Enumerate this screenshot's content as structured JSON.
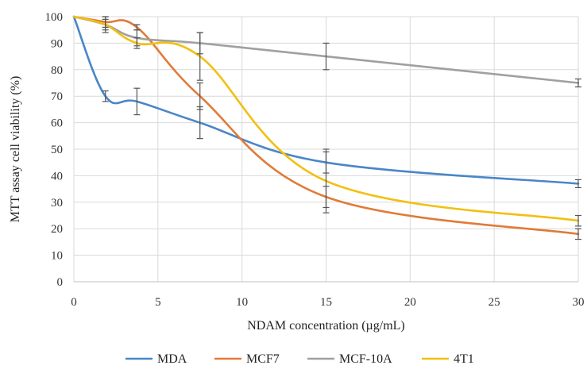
{
  "chart_data": {
    "type": "line",
    "title": "",
    "xlabel": "NDAM concentration (µg/mL)",
    "ylabel": "MTT assay cell viability (%)",
    "xlim": [
      0,
      30
    ],
    "ylim": [
      0,
      100
    ],
    "x_ticks": [
      0,
      5,
      10,
      15,
      20,
      25,
      30
    ],
    "y_ticks": [
      0,
      10,
      20,
      30,
      40,
      50,
      60,
      70,
      80,
      90,
      100
    ],
    "grid": true,
    "legend_position": "bottom",
    "x": [
      0,
      1.875,
      3.75,
      7.5,
      15,
      30
    ],
    "series": [
      {
        "name": "MDA",
        "color": "#4a86c8",
        "values": [
          100,
          70,
          68,
          60,
          45,
          37
        ],
        "errors": [
          0,
          2,
          5,
          6,
          4,
          1.5
        ]
      },
      {
        "name": "MCF7",
        "color": "#e07b39",
        "values": [
          100,
          98,
          96,
          70,
          32,
          18
        ],
        "errors": [
          0,
          2,
          1,
          5,
          4,
          2
        ]
      },
      {
        "name": "MCF-10A",
        "color": "#a0a0a0",
        "values": [
          100,
          97,
          92,
          90,
          85,
          75
        ],
        "errors": [
          0,
          3,
          3,
          4,
          5,
          1.5
        ]
      },
      {
        "name": "4T1",
        "color": "#f2c010",
        "values": [
          100,
          97,
          90,
          85,
          38,
          23
        ],
        "errors": [
          0,
          2,
          2,
          9,
          12,
          2
        ]
      }
    ]
  }
}
